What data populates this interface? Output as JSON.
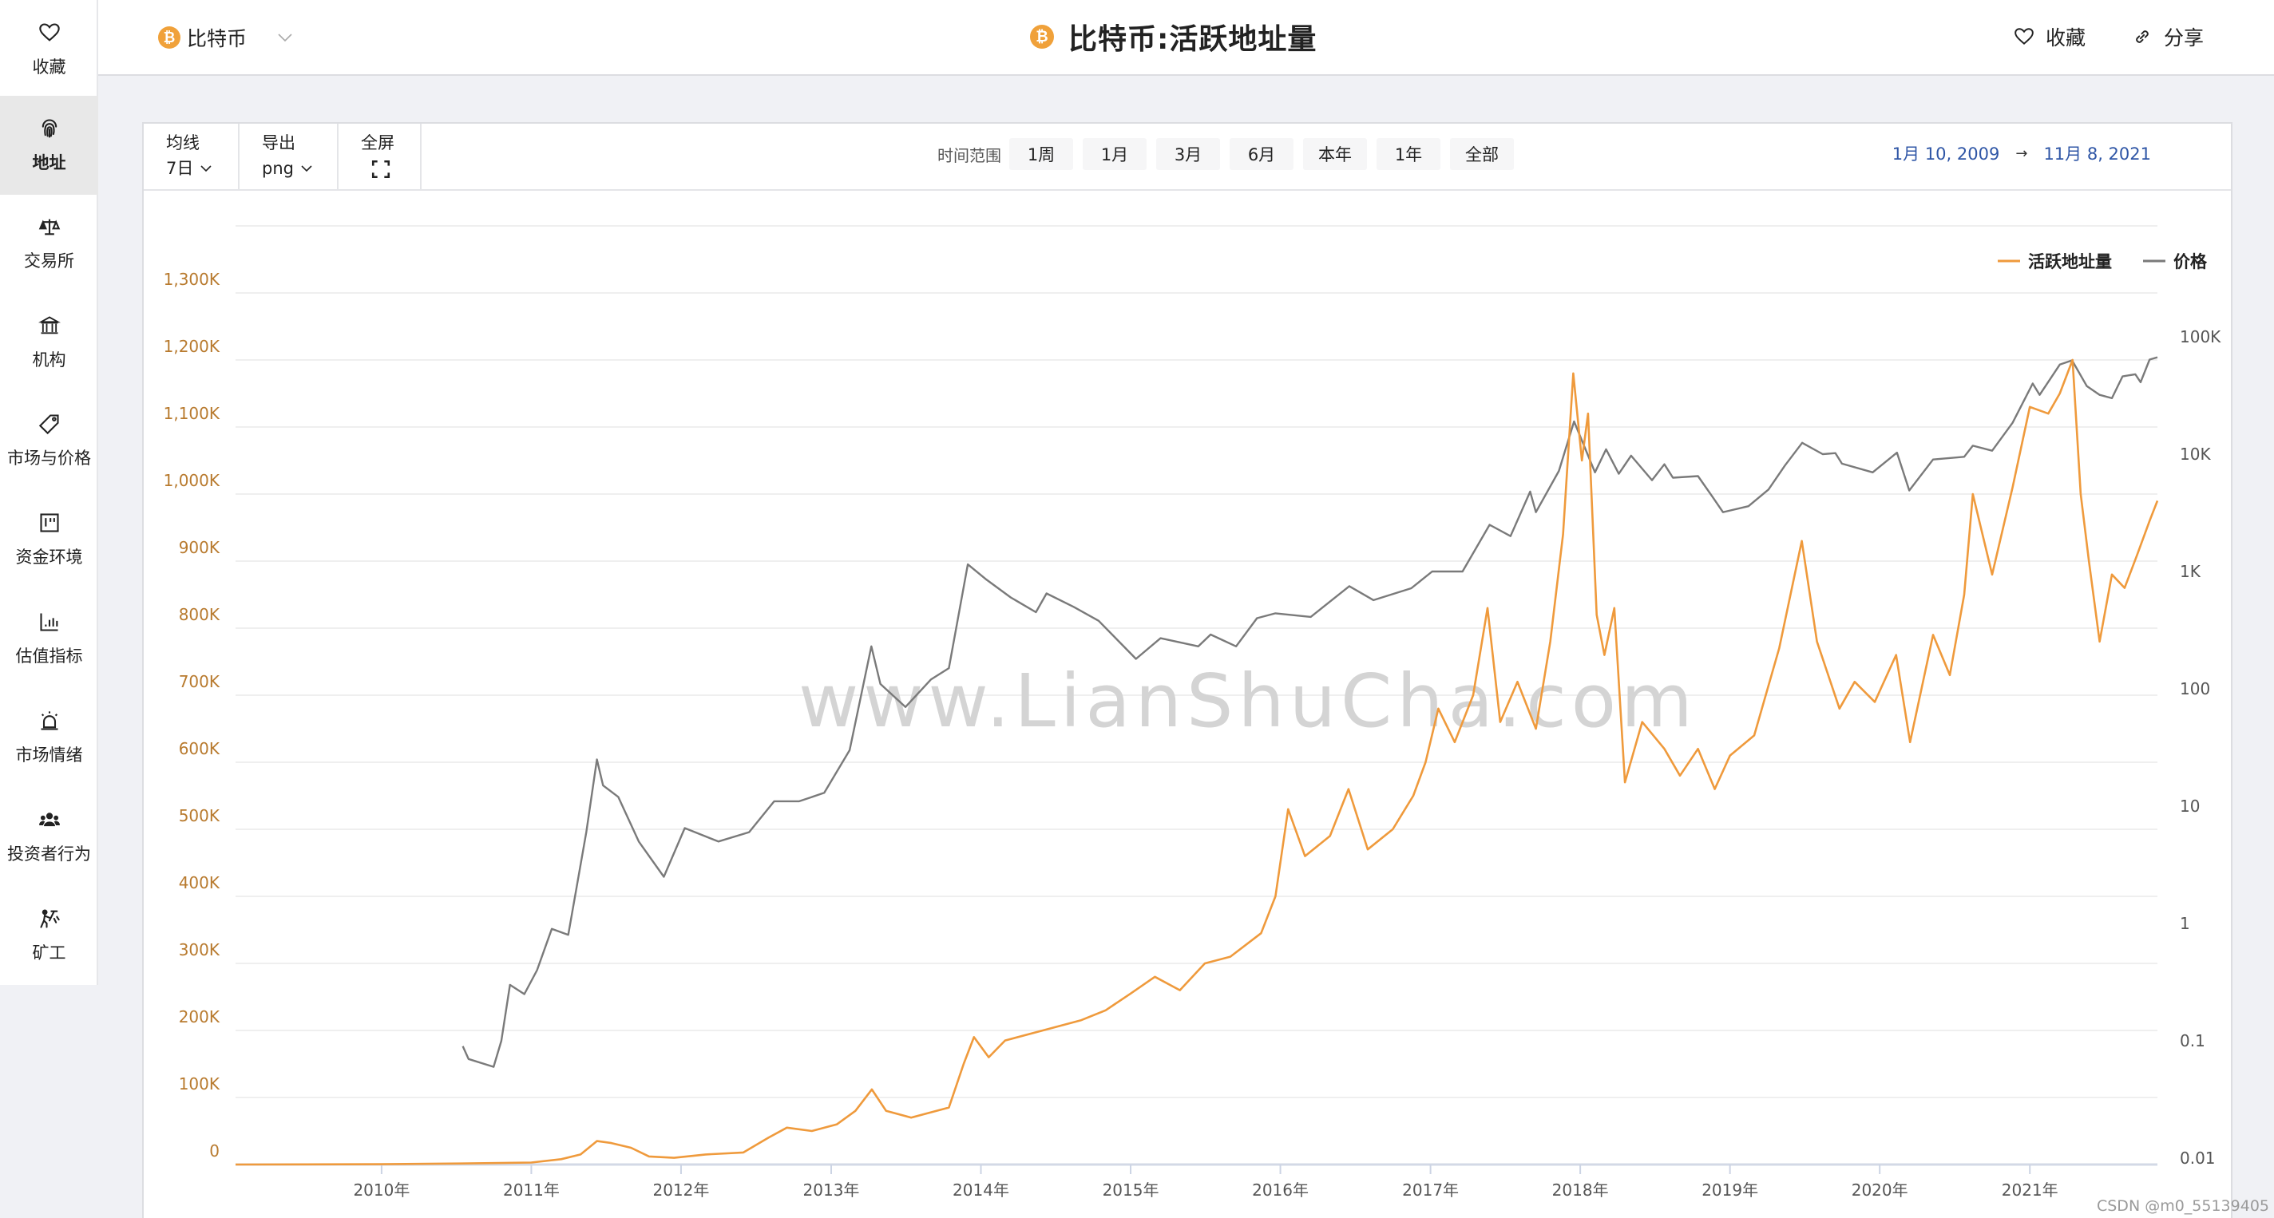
{
  "header": {
    "coin_select": {
      "icon": "bitcoin-icon",
      "value": "比特币"
    },
    "title": "比特币:活跃地址量",
    "actions": {
      "favorite": "收藏",
      "share": "分享"
    }
  },
  "sidebar": {
    "items": [
      {
        "label": "收藏",
        "icon": "heart-icon",
        "active": false
      },
      {
        "label": "地址",
        "icon": "fingerprint-icon",
        "active": true
      },
      {
        "label": "交易所",
        "icon": "scale-icon",
        "active": false
      },
      {
        "label": "机构",
        "icon": "bank-icon",
        "active": false
      },
      {
        "label": "市场与价格",
        "icon": "tag-icon",
        "active": false
      },
      {
        "label": "资金环境",
        "icon": "board-icon",
        "active": false
      },
      {
        "label": "估值指标",
        "icon": "bar-chart-icon",
        "active": false
      },
      {
        "label": "市场情绪",
        "icon": "siren-icon",
        "active": false
      },
      {
        "label": "投资者行为",
        "icon": "users-icon",
        "active": false
      },
      {
        "label": "矿工",
        "icon": "miner-icon",
        "active": false
      }
    ]
  },
  "toolbar": {
    "ma": {
      "label": "均线",
      "value": "7日"
    },
    "export": {
      "label": "导出",
      "value": "png"
    },
    "fullscreen": {
      "label": "全屏",
      "icon": "expand-icon"
    },
    "range_label": "时间范围",
    "range_buttons": [
      "1周",
      "1月",
      "3月",
      "6月",
      "本年",
      "1年",
      "全部"
    ],
    "date_from": "1月 10, 2009",
    "date_arrow": "→",
    "date_to": "11月 8, 2021"
  },
  "colors": {
    "accent_orange": "#f0a13a",
    "address_line": "#ef9a3c",
    "price_line": "#7a7a7a",
    "left_axis_text": "#b87a2e",
    "right_axis_text": "#555555",
    "date_blue": "#2f56a6"
  },
  "watermark": "www.LianShuCha.com",
  "footer_credit": "CSDN @m0_55139405",
  "chart_data": {
    "type": "line",
    "title": "比特币:活跃地址量",
    "xlabel": "",
    "ylabel_left": "活跃地址量",
    "ylabel_right": "价格",
    "x_range": [
      "2009-01-10",
      "2021-11-08"
    ],
    "x_ticks": [
      "2010年",
      "2011年",
      "2012年",
      "2013年",
      "2014年",
      "2015年",
      "2016年",
      "2017年",
      "2018年",
      "2019年",
      "2020年",
      "2021年"
    ],
    "y_left_ticks": [
      "0",
      "100K",
      "200K",
      "300K",
      "400K",
      "500K",
      "600K",
      "700K",
      "800K",
      "900K",
      "1,000K",
      "1,100K",
      "1,200K",
      "1,300K"
    ],
    "y_left_range": [
      0,
      1400000
    ],
    "y_right_ticks": [
      "0.01",
      "0.1",
      "1",
      "10",
      "100",
      "1K",
      "10K",
      "100K"
    ],
    "y_right_scale": "log",
    "y_right_range": [
      0.01,
      100000
    ],
    "grid": true,
    "legend": {
      "position": "top-right",
      "entries": [
        "活跃地址量",
        "价格"
      ]
    },
    "series": [
      {
        "name": "活跃地址量",
        "axis": "left",
        "color": "#ef9a3c",
        "points": [
          [
            "2009-01-10",
            0
          ],
          [
            "2010-01-01",
            500
          ],
          [
            "2010-07-15",
            1500
          ],
          [
            "2011-01-01",
            3000
          ],
          [
            "2011-03-15",
            8000
          ],
          [
            "2011-05-01",
            15000
          ],
          [
            "2011-06-10",
            35000
          ],
          [
            "2011-07-15",
            32000
          ],
          [
            "2011-09-01",
            25000
          ],
          [
            "2011-10-15",
            12000
          ],
          [
            "2011-12-15",
            10000
          ],
          [
            "2012-03-01",
            15000
          ],
          [
            "2012-06-01",
            18000
          ],
          [
            "2012-08-01",
            40000
          ],
          [
            "2012-09-15",
            55000
          ],
          [
            "2012-11-15",
            50000
          ],
          [
            "2013-01-15",
            60000
          ],
          [
            "2013-03-01",
            80000
          ],
          [
            "2013-04-10",
            112000
          ],
          [
            "2013-05-15",
            80000
          ],
          [
            "2013-07-15",
            70000
          ],
          [
            "2013-10-15",
            85000
          ],
          [
            "2013-11-20",
            150000
          ],
          [
            "2013-12-15",
            190000
          ],
          [
            "2014-01-20",
            160000
          ],
          [
            "2014-03-01",
            185000
          ],
          [
            "2014-06-01",
            200000
          ],
          [
            "2014-09-01",
            215000
          ],
          [
            "2014-11-01",
            230000
          ],
          [
            "2015-01-01",
            255000
          ],
          [
            "2015-03-01",
            280000
          ],
          [
            "2015-05-01",
            260000
          ],
          [
            "2015-07-01",
            300000
          ],
          [
            "2015-09-01",
            310000
          ],
          [
            "2015-11-15",
            345000
          ],
          [
            "2015-12-20",
            400000
          ],
          [
            "2016-01-20",
            530000
          ],
          [
            "2016-03-01",
            460000
          ],
          [
            "2016-05-01",
            490000
          ],
          [
            "2016-06-15",
            560000
          ],
          [
            "2016-08-01",
            470000
          ],
          [
            "2016-10-01",
            500000
          ],
          [
            "2016-11-20",
            550000
          ],
          [
            "2016-12-20",
            600000
          ],
          [
            "2017-01-20",
            680000
          ],
          [
            "2017-03-01",
            630000
          ],
          [
            "2017-04-15",
            700000
          ],
          [
            "2017-05-20",
            830000
          ],
          [
            "2017-06-20",
            660000
          ],
          [
            "2017-08-01",
            720000
          ],
          [
            "2017-09-15",
            650000
          ],
          [
            "2017-10-20",
            780000
          ],
          [
            "2017-11-20",
            940000
          ],
          [
            "2017-12-15",
            1180000
          ],
          [
            "2018-01-05",
            1050000
          ],
          [
            "2018-01-20",
            1120000
          ],
          [
            "2018-02-10",
            820000
          ],
          [
            "2018-03-01",
            760000
          ],
          [
            "2018-03-25",
            830000
          ],
          [
            "2018-04-20",
            570000
          ],
          [
            "2018-06-01",
            660000
          ],
          [
            "2018-07-25",
            620000
          ],
          [
            "2018-09-01",
            580000
          ],
          [
            "2018-10-15",
            620000
          ],
          [
            "2018-11-25",
            560000
          ],
          [
            "2019-01-01",
            610000
          ],
          [
            "2019-03-01",
            640000
          ],
          [
            "2019-05-01",
            770000
          ],
          [
            "2019-06-25",
            930000
          ],
          [
            "2019-08-01",
            780000
          ],
          [
            "2019-09-25",
            680000
          ],
          [
            "2019-11-01",
            720000
          ],
          [
            "2019-12-20",
            690000
          ],
          [
            "2020-02-10",
            760000
          ],
          [
            "2020-03-15",
            630000
          ],
          [
            "2020-05-10",
            790000
          ],
          [
            "2020-06-20",
            730000
          ],
          [
            "2020-07-25",
            850000
          ],
          [
            "2020-08-15",
            1000000
          ],
          [
            "2020-10-01",
            880000
          ],
          [
            "2020-11-20",
            1010000
          ],
          [
            "2021-01-01",
            1130000
          ],
          [
            "2021-02-15",
            1120000
          ],
          [
            "2021-03-15",
            1150000
          ],
          [
            "2021-04-15",
            1200000
          ],
          [
            "2021-05-05",
            1000000
          ],
          [
            "2021-05-25",
            900000
          ],
          [
            "2021-06-20",
            780000
          ],
          [
            "2021-07-20",
            880000
          ],
          [
            "2021-08-20",
            860000
          ],
          [
            "2021-09-20",
            910000
          ],
          [
            "2021-10-20",
            960000
          ],
          [
            "2021-11-08",
            990000
          ]
        ]
      },
      {
        "name": "价格",
        "axis": "right",
        "color": "#7a7a7a",
        "points": [
          [
            "2010-07-18",
            0.09
          ],
          [
            "2010-08-01",
            0.07
          ],
          [
            "2010-10-01",
            0.06
          ],
          [
            "2010-10-20",
            0.1
          ],
          [
            "2010-11-10",
            0.3
          ],
          [
            "2010-12-15",
            0.25
          ],
          [
            "2011-01-15",
            0.4
          ],
          [
            "2011-02-20",
            0.9
          ],
          [
            "2011-04-01",
            0.8
          ],
          [
            "2011-05-15",
            6
          ],
          [
            "2011-06-10",
            25
          ],
          [
            "2011-06-25",
            15
          ],
          [
            "2011-08-01",
            12
          ],
          [
            "2011-09-20",
            5
          ],
          [
            "2011-11-20",
            2.5
          ],
          [
            "2012-01-10",
            6.5
          ],
          [
            "2012-04-01",
            5
          ],
          [
            "2012-06-15",
            6
          ],
          [
            "2012-08-15",
            11
          ],
          [
            "2012-10-15",
            11
          ],
          [
            "2012-12-15",
            13
          ],
          [
            "2013-02-15",
            30
          ],
          [
            "2013-04-09",
            230
          ],
          [
            "2013-05-01",
            110
          ],
          [
            "2013-07-01",
            70
          ],
          [
            "2013-09-01",
            120
          ],
          [
            "2013-10-15",
            150
          ],
          [
            "2013-11-30",
            1150
          ],
          [
            "2014-01-15",
            850
          ],
          [
            "2014-03-15",
            600
          ],
          [
            "2014-05-15",
            450
          ],
          [
            "2014-06-10",
            650
          ],
          [
            "2014-08-15",
            500
          ],
          [
            "2014-10-15",
            380
          ],
          [
            "2015-01-14",
            180
          ],
          [
            "2015-03-15",
            270
          ],
          [
            "2015-06-15",
            230
          ],
          [
            "2015-07-15",
            290
          ],
          [
            "2015-09-15",
            230
          ],
          [
            "2015-11-05",
            400
          ],
          [
            "2015-12-20",
            440
          ],
          [
            "2016-03-15",
            410
          ],
          [
            "2016-06-17",
            750
          ],
          [
            "2016-08-15",
            570
          ],
          [
            "2016-11-15",
            720
          ],
          [
            "2017-01-05",
            1000
          ],
          [
            "2017-03-20",
            1000
          ],
          [
            "2017-05-25",
            2500
          ],
          [
            "2017-07-15",
            2000
          ],
          [
            "2017-09-01",
            4800
          ],
          [
            "2017-09-15",
            3200
          ],
          [
            "2017-11-10",
            7200
          ],
          [
            "2017-12-17",
            19000
          ],
          [
            "2018-02-06",
            7000
          ],
          [
            "2018-03-05",
            11000
          ],
          [
            "2018-04-05",
            6800
          ],
          [
            "2018-05-05",
            9700
          ],
          [
            "2018-06-25",
            6000
          ],
          [
            "2018-07-25",
            8200
          ],
          [
            "2018-08-15",
            6300
          ],
          [
            "2018-10-15",
            6500
          ],
          [
            "2018-11-20",
            4300
          ],
          [
            "2018-12-15",
            3200
          ],
          [
            "2019-02-15",
            3600
          ],
          [
            "2019-04-05",
            5000
          ],
          [
            "2019-05-15",
            8000
          ],
          [
            "2019-06-26",
            12500
          ],
          [
            "2019-08-15",
            10000
          ],
          [
            "2019-09-15",
            10200
          ],
          [
            "2019-10-01",
            8300
          ],
          [
            "2019-12-15",
            7000
          ],
          [
            "2020-02-12",
            10300
          ],
          [
            "2020-03-13",
            4900
          ],
          [
            "2020-05-10",
            9000
          ],
          [
            "2020-07-25",
            9500
          ],
          [
            "2020-08-15",
            11800
          ],
          [
            "2020-10-01",
            10700
          ],
          [
            "2020-11-20",
            18500
          ],
          [
            "2021-01-08",
            40000
          ],
          [
            "2021-01-25",
            32000
          ],
          [
            "2021-03-15",
            58000
          ],
          [
            "2021-04-14",
            63000
          ],
          [
            "2021-05-20",
            38000
          ],
          [
            "2021-06-20",
            32000
          ],
          [
            "2021-07-20",
            30000
          ],
          [
            "2021-08-15",
            46000
          ],
          [
            "2021-09-15",
            48000
          ],
          [
            "2021-09-28",
            41000
          ],
          [
            "2021-10-20",
            64000
          ],
          [
            "2021-11-08",
            67000
          ]
        ]
      }
    ]
  }
}
